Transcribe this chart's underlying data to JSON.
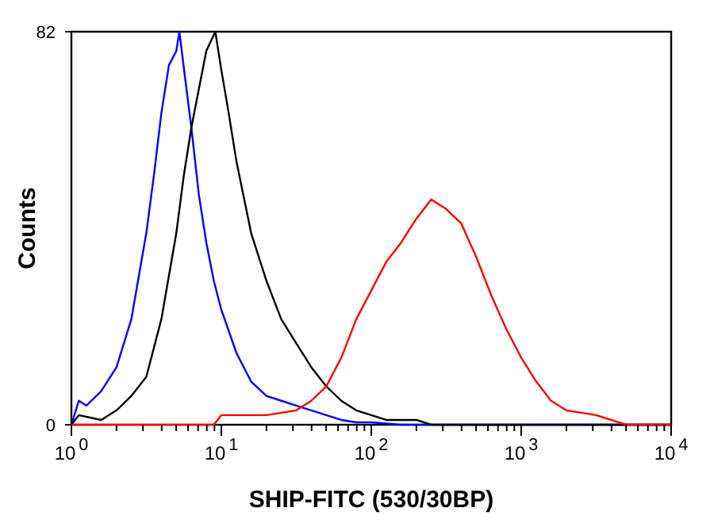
{
  "chart_data": {
    "type": "line",
    "xlabel": "SHIP-FITC (530/30BP)",
    "ylabel": "Counts",
    "log": "x",
    "grid": false,
    "line_style": "solid",
    "xlim": [
      1,
      10000
    ],
    "ylim": [
      0,
      82
    ],
    "xticks": [
      {
        "value": 1,
        "label": "10$^{0}$"
      },
      {
        "value": 2,
        "label": null
      },
      {
        "value": 3,
        "label": null
      },
      {
        "value": 4,
        "label": null
      },
      {
        "value": 5,
        "label": null
      },
      {
        "value": 6,
        "label": null
      },
      {
        "value": 7,
        "label": null
      },
      {
        "value": 8,
        "label": null
      },
      {
        "value": 9,
        "label": null
      },
      {
        "value": 10,
        "label": "10$^{1}$"
      },
      {
        "value": 20,
        "label": null
      },
      {
        "value": 30,
        "label": null
      },
      {
        "value": 40,
        "label": null
      },
      {
        "value": 50,
        "label": null
      },
      {
        "value": 60,
        "label": null
      },
      {
        "value": 70,
        "label": null
      },
      {
        "value": 80,
        "label": null
      },
      {
        "value": 90,
        "label": null
      },
      {
        "value": 100,
        "label": "10$^{2}$"
      },
      {
        "value": 200,
        "label": null
      },
      {
        "value": 300,
        "label": null
      },
      {
        "value": 400,
        "label": null
      },
      {
        "value": 500,
        "label": null
      },
      {
        "value": 600,
        "label": null
      },
      {
        "value": 700,
        "label": null
      },
      {
        "value": 800,
        "label": null
      },
      {
        "value": 900,
        "label": null
      },
      {
        "value": 1000,
        "label": "10$^{3}$"
      },
      {
        "value": 2000,
        "label": null
      },
      {
        "value": 3000,
        "label": null
      },
      {
        "value": 4000,
        "label": null
      },
      {
        "value": 5000,
        "label": null
      },
      {
        "value": 6000,
        "label": null
      },
      {
        "value": 7000,
        "label": null
      },
      {
        "value": 8000,
        "label": null
      },
      {
        "value": 9000,
        "label": null
      },
      {
        "value": 10000,
        "label": "10$^{4}$"
      }
    ],
    "yticks": [
      0,
      82
    ],
    "series": [
      {
        "color": "#0000ff",
        "x": [
          1,
          1.12,
          1.26,
          1.58,
          2.0,
          2.51,
          3.16,
          3.55,
          3.98,
          4.47,
          5.01,
          5.25,
          5.75,
          6.31,
          7.08,
          7.94,
          8.91,
          10,
          12.6,
          15.8,
          20,
          25.1,
          31.6,
          39.8,
          50.1,
          63.1,
          79.4,
          100,
          158,
          10000
        ],
        "values": [
          0,
          5,
          4,
          7,
          12,
          22,
          40,
          52,
          65,
          75,
          78,
          82,
          72,
          62,
          48,
          38,
          30,
          24,
          15,
          9,
          6,
          5,
          4,
          3,
          2,
          1,
          0.5,
          0.5,
          0,
          0
        ]
      },
      {
        "color": "#000000",
        "x": [
          1,
          1.12,
          1.58,
          2.0,
          2.51,
          3.16,
          3.98,
          5.01,
          5.62,
          6.31,
          7.08,
          7.94,
          9.12,
          10,
          11.2,
          12.6,
          15.8,
          20,
          25.1,
          31.6,
          39.8,
          50.1,
          63.1,
          79.4,
          100,
          126,
          200,
          251,
          10000
        ],
        "values": [
          0,
          2,
          1,
          3,
          6,
          10,
          22,
          40,
          52,
          62,
          70,
          78,
          82,
          74,
          65,
          55,
          40,
          30,
          22,
          17,
          12,
          8,
          5,
          3,
          2,
          1,
          1,
          0,
          0
        ]
      },
      {
        "color": "#ff0000",
        "x": [
          1,
          8.91,
          10,
          20,
          31.6,
          39.8,
          50.1,
          63.1,
          79.4,
          100,
          126,
          158,
          200,
          251,
          316,
          398,
          501,
          631,
          794,
          1000,
          1260,
          1580,
          2000,
          3160,
          3980,
          5010,
          10000
        ],
        "values": [
          0,
          0,
          2,
          2,
          3,
          5,
          8,
          14,
          22,
          28,
          34,
          38,
          43,
          47,
          45,
          42,
          35,
          27,
          20,
          14,
          9,
          5,
          3,
          2,
          1,
          0,
          0
        ]
      }
    ]
  }
}
